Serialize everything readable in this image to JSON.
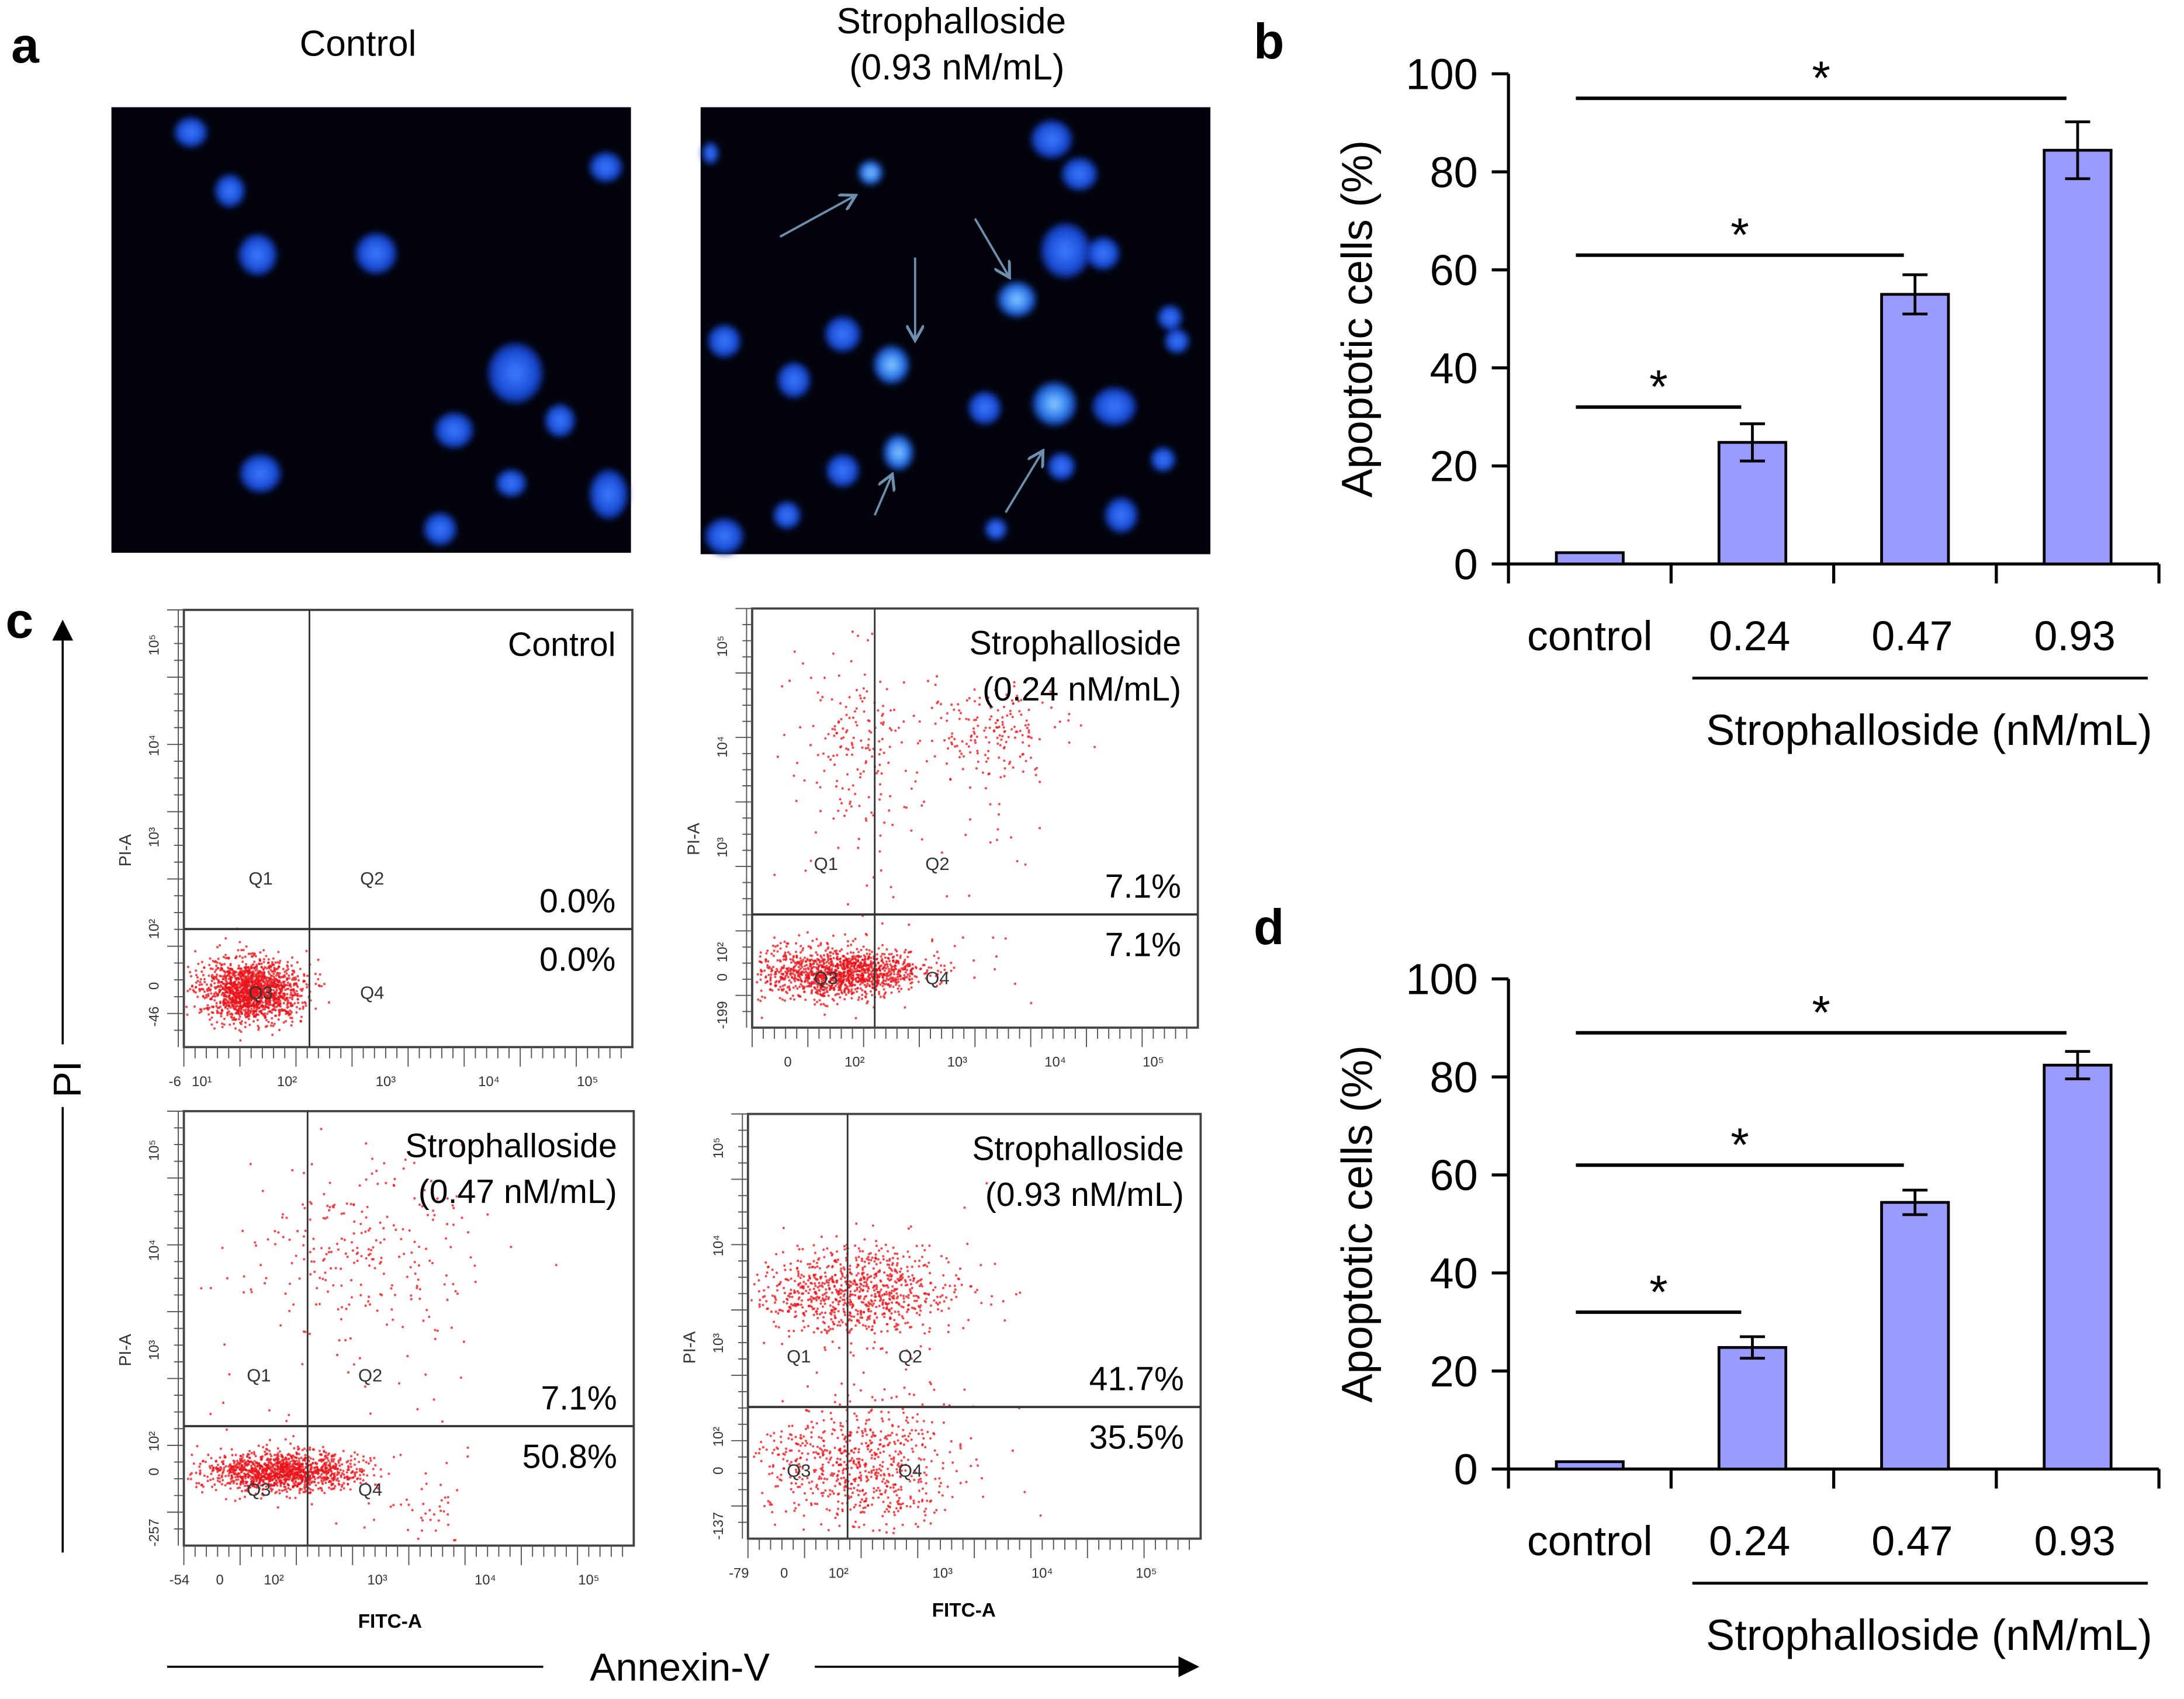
{
  "panel_labels": {
    "a": "a",
    "b": "b",
    "c": "c",
    "d": "d"
  },
  "panel_a": {
    "control_title": "Control",
    "treated_title_line1": "Strophalloside",
    "treated_title_line2": "(0.93 nM/mL)"
  },
  "panel_c": {
    "y_axis_label": "PI",
    "x_axis_label": "Annexin-V",
    "x_channel_label": "FITC-A",
    "y_channel_label": "PI-A",
    "quadrants": [
      "Q1",
      "Q2",
      "Q3",
      "Q4"
    ],
    "plots": [
      {
        "title1": "Control",
        "title2": "",
        "upper_pct": "0.0%",
        "lower_pct": "0.0%",
        "y_ticks": [
          "10⁵",
          "10⁴",
          "10³",
          "10²",
          "0",
          "-46"
        ],
        "x_ticks": [
          "-6",
          "10¹",
          "10²",
          "10³",
          "10⁴",
          "10⁵"
        ]
      },
      {
        "title1": "Strophalloside",
        "title2": "(0.24 nM/mL)",
        "upper_pct": "7.1%",
        "lower_pct": "7.1%",
        "y_ticks": [
          "10⁵",
          "10⁴",
          "10³",
          "10²",
          "0",
          "-199"
        ],
        "x_ticks": [
          "0",
          "10²",
          "10³",
          "10⁴",
          "10⁵"
        ]
      },
      {
        "title1": "Strophalloside",
        "title2": "(0.47 nM/mL)",
        "upper_pct": "7.1%",
        "lower_pct": "50.8%",
        "y_ticks": [
          "10⁵",
          "10⁴",
          "10³",
          "10²",
          "0",
          "-257"
        ],
        "x_ticks": [
          "-54",
          "0",
          "10²",
          "10³",
          "10⁴",
          "10⁵"
        ]
      },
      {
        "title1": "Strophalloside",
        "title2": "(0.93 nM/mL)",
        "upper_pct": "41.7%",
        "lower_pct": "35.5%",
        "y_ticks": [
          "10⁵",
          "10⁴",
          "10³",
          "10²",
          "0",
          "-137"
        ],
        "x_ticks": [
          "-79",
          "0",
          "10²",
          "10³",
          "10⁴",
          "10⁵"
        ]
      }
    ]
  },
  "colors": {
    "bar": "#9b9bff",
    "scatter": "#e8141b",
    "nucleus": "#1a4fd8"
  },
  "chart_data": [
    {
      "panel": "b",
      "type": "bar",
      "categories": [
        "control",
        "0.24",
        "0.47",
        "0.93"
      ],
      "values": [
        2.3,
        24.8,
        55.0,
        84.4
      ],
      "errors": [
        0,
        3.8,
        4.0,
        5.8
      ],
      "xlabel": "Strophalloside (nM/mL)",
      "ylabel": "Apoptotic cells (%)",
      "ylim": [
        0,
        100
      ],
      "yticks": [
        "0",
        "20",
        "40",
        "60",
        "80",
        "100"
      ],
      "significance": [
        {
          "from": "control",
          "to": "0.24",
          "label": "*",
          "level": 32
        },
        {
          "from": "control",
          "to": "0.47",
          "label": "*",
          "level": 63
        },
        {
          "from": "control",
          "to": "0.93",
          "label": "*",
          "level": 95
        }
      ]
    },
    {
      "panel": "d",
      "type": "bar",
      "categories": [
        "control",
        "0.24",
        "0.47",
        "0.93"
      ],
      "values": [
        1.5,
        24.8,
        54.4,
        82.4
      ],
      "errors": [
        0,
        2.2,
        2.5,
        2.8
      ],
      "xlabel": "Strophalloside (nM/mL)",
      "ylabel": "Apoptotic cells (%)",
      "ylim": [
        0,
        100
      ],
      "yticks": [
        "0",
        "20",
        "40",
        "60",
        "80",
        "100"
      ],
      "significance": [
        {
          "from": "control",
          "to": "0.24",
          "label": "*",
          "level": 32
        },
        {
          "from": "control",
          "to": "0.47",
          "label": "*",
          "level": 62
        },
        {
          "from": "control",
          "to": "0.93",
          "label": "*",
          "level": 89
        }
      ]
    }
  ]
}
